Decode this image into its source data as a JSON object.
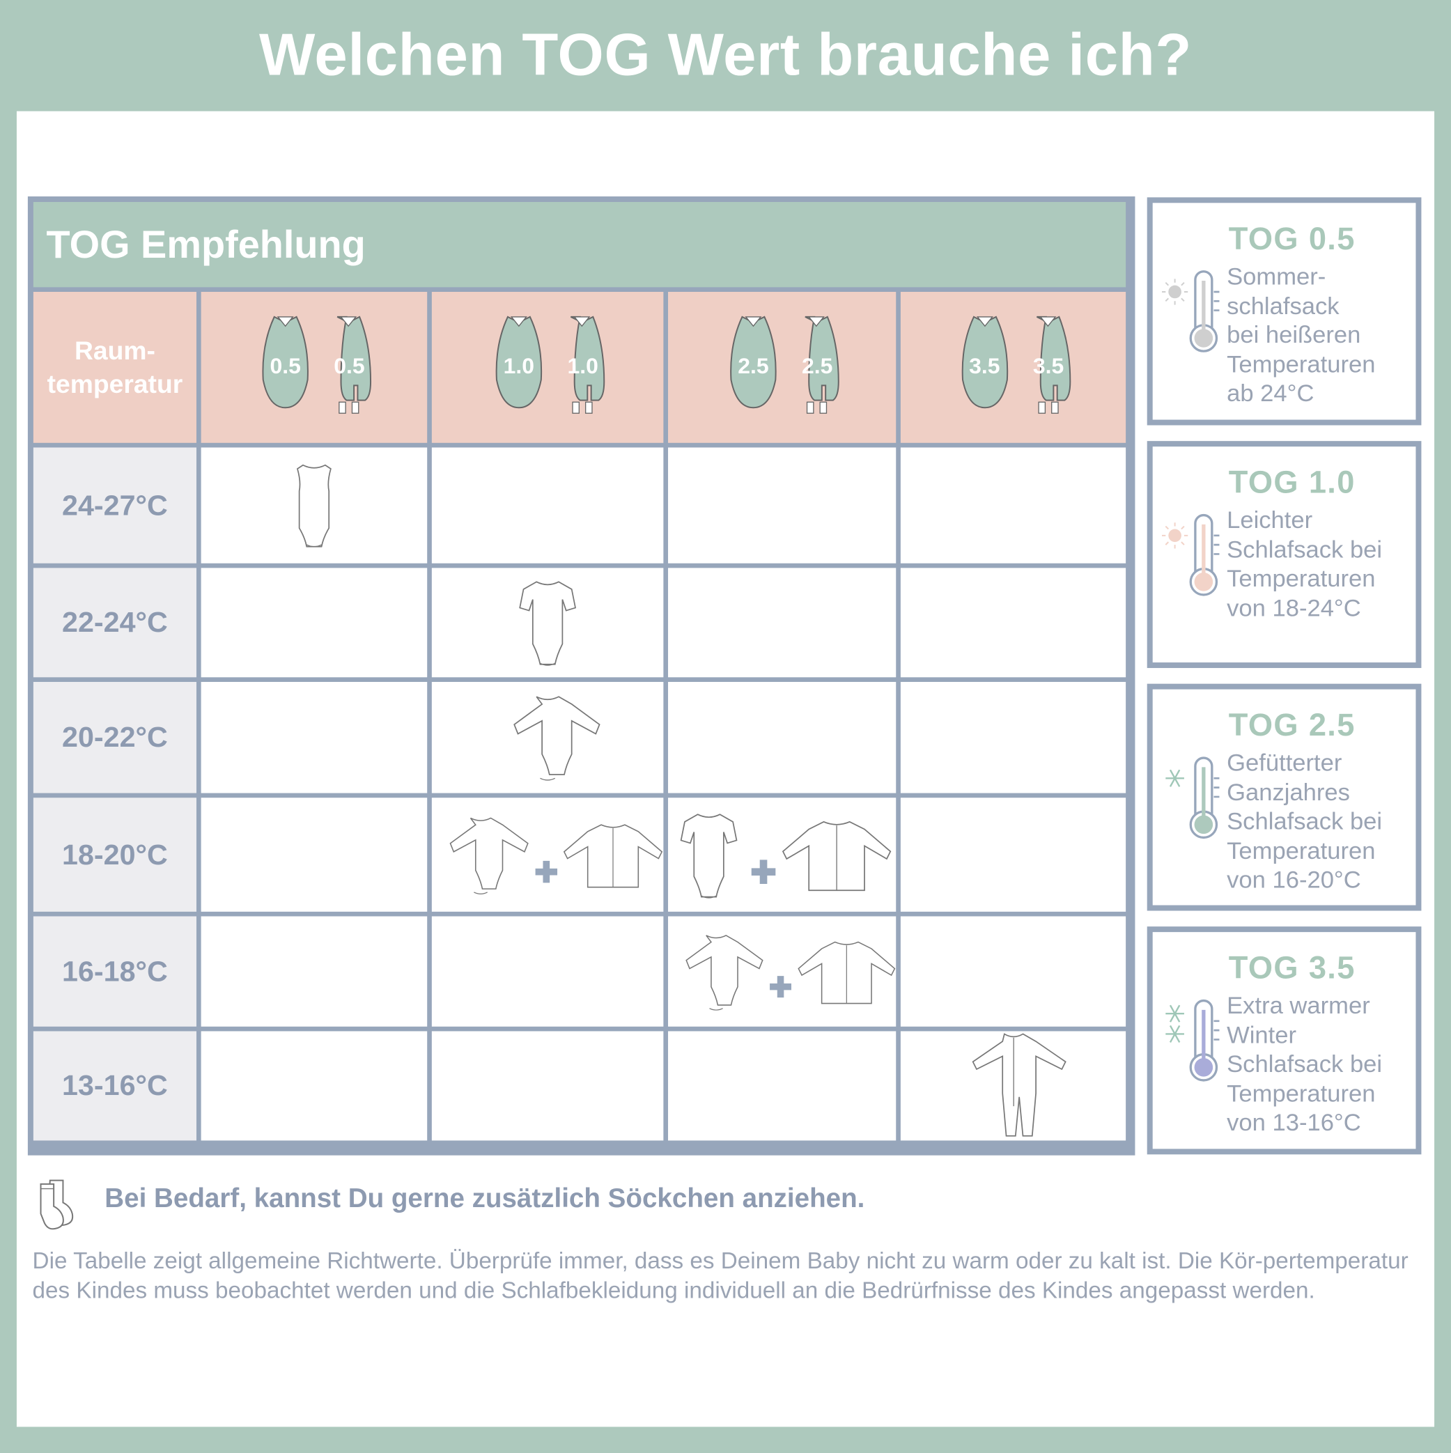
{
  "title": "Welchen TOG Wert brauche ich?",
  "table": {
    "heading": "TOG Empfehlung",
    "row_header_label": "Raum-\ntemperatur",
    "columns": [
      {
        "tog": "0.5"
      },
      {
        "tog": "1.0"
      },
      {
        "tog": "2.5"
      },
      {
        "tog": "3.5"
      }
    ],
    "sleeping_bag_color": "#adc9bd",
    "rows": [
      {
        "temp": "24-27°C",
        "cells": [
          [
            "sleeveless-bodysuit"
          ],
          [],
          [],
          []
        ]
      },
      {
        "temp": "22-24°C",
        "cells": [
          [],
          [
            "short-sleeve-bodysuit"
          ],
          [],
          []
        ]
      },
      {
        "temp": "20-22°C",
        "cells": [
          [],
          [
            "long-sleeve-bodysuit"
          ],
          [],
          []
        ]
      },
      {
        "temp": "18-20°C",
        "cells": [
          [],
          [
            "long-sleeve-bodysuit",
            "plus",
            "cardigan"
          ],
          [
            "short-sleeve-bodysuit",
            "plus",
            "cardigan"
          ],
          []
        ]
      },
      {
        "temp": "16-18°C",
        "cells": [
          [],
          [],
          [
            "long-sleeve-bodysuit",
            "plus",
            "cardigan"
          ],
          []
        ]
      },
      {
        "temp": "13-16°C",
        "cells": [
          [],
          [],
          [],
          [
            "sleepsuit"
          ]
        ]
      }
    ]
  },
  "legend": [
    {
      "title": "TOG 0.5",
      "text": "Sommer-\nschlafsack\nbei heißeren\nTemperaturen\nab 24°C",
      "icon": "sun-thermometer-icon",
      "color": "#cfcfcf"
    },
    {
      "title": "TOG 1.0",
      "text": "Leichter\nSchlafsack bei\nTemperaturen\nvon 18-24°C",
      "icon": "sun-thermometer-icon",
      "color": "#f2d3c8"
    },
    {
      "title": "TOG 2.5",
      "text": "Gefütterter\nGanzjahres\nSchlafsack bei\nTemperaturen\nvon 16-20°C",
      "icon": "snowflake-thermometer-icon",
      "color": "#adc9bd"
    },
    {
      "title": "TOG 3.5",
      "text": "Extra warmer\nWinter\nSchlafsack bei\nTemperaturen\nvon 13-16°C",
      "icon": "double-snowflake-thermometer-icon",
      "color": "#a9acd9"
    }
  ],
  "socks_note": "Bei Bedarf, kannst Du gerne zusätzlich Söckchen anziehen.",
  "disclaimer": "Die Tabelle zeigt allgemeine Richtwerte. Überprüfe immer, dass es Deinem Baby nicht zu warm oder zu kalt ist. Die Kör-pertemperatur des Kindes muss beobachtet werden und die Schlafbekleidung individuell an die Bedrürfnisse des Kindes angepasst werden."
}
